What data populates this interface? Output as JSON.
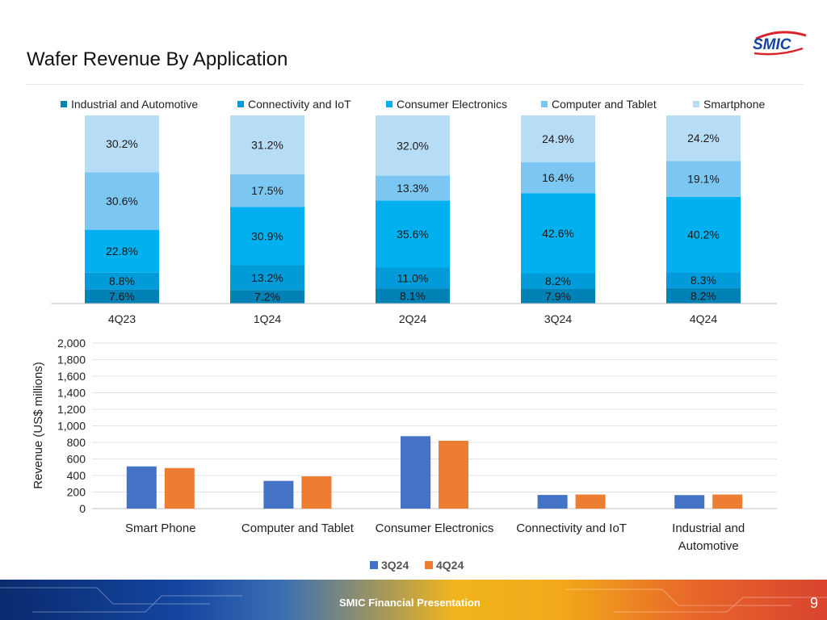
{
  "slide": {
    "title": "Wafer Revenue By Application",
    "logo_text": "SMIC",
    "footer_text": "SMIC Financial Presentation",
    "page_number": "9"
  },
  "colors": {
    "industrial": "#0082B6",
    "connectivity": "#009BD8",
    "consumer": "#00B0EF",
    "computer": "#7CC7F2",
    "smartphone": "#B7DCF5",
    "q3": "#4472C4",
    "q4": "#ED7D31",
    "logo_blue": "#1446A0",
    "logo_red": "#D9252E"
  },
  "chart_data": [
    {
      "type": "bar",
      "stacked": true,
      "categories": [
        "4Q23",
        "1Q24",
        "2Q24",
        "3Q24",
        "4Q24"
      ],
      "series": [
        {
          "name": "Industrial and Automotive",
          "values": [
            7.6,
            7.2,
            8.1,
            7.9,
            8.2
          ],
          "labels": [
            "7.6%",
            "7.2%",
            "8.1%",
            "7.9%",
            "8.2%"
          ]
        },
        {
          "name": "Connectivity and IoT",
          "values": [
            8.8,
            13.2,
            11.0,
            8.2,
            8.3
          ],
          "labels": [
            "8.8%",
            "13.2%",
            "11.0%",
            "8.2%",
            "8.3%"
          ]
        },
        {
          "name": "Consumer Electronics",
          "values": [
            22.8,
            30.9,
            35.6,
            42.6,
            40.2
          ],
          "labels": [
            "22.8%",
            "30.9%",
            "35.6%",
            "42.6%",
            "40.2%"
          ]
        },
        {
          "name": "Computer and Tablet",
          "values": [
            30.6,
            17.5,
            13.3,
            16.4,
            19.1
          ],
          "labels": [
            "30.6%",
            "17.5%",
            "13.3%",
            "16.4%",
            "19.1%"
          ]
        },
        {
          "name": "Smartphone",
          "values": [
            30.2,
            31.2,
            32.0,
            24.9,
            24.2
          ],
          "labels": [
            "30.2%",
            "31.2%",
            "32.0%",
            "24.9%",
            "24.2%"
          ]
        }
      ],
      "ylim": [
        0,
        100
      ],
      "legend": "top",
      "grid": false
    },
    {
      "type": "bar",
      "categories": [
        "Smart Phone",
        "Computer and Tablet",
        "Consumer Electronics",
        "Connectivity and IoT",
        "Industrial and Automotive"
      ],
      "series": [
        {
          "name": "3Q24",
          "values": [
            510,
            335,
            875,
            165,
            163
          ]
        },
        {
          "name": "4Q24",
          "values": [
            490,
            390,
            820,
            170,
            170
          ]
        }
      ],
      "ylabel": "Revenue (US$  millions)",
      "ylim": [
        0,
        2000
      ],
      "yticks": [
        "0",
        "200",
        "400",
        "600",
        "800",
        "1,000",
        "1,200",
        "1,400",
        "1,600",
        "1,800",
        "2,000"
      ],
      "legend": "bottom",
      "grid": true
    }
  ]
}
